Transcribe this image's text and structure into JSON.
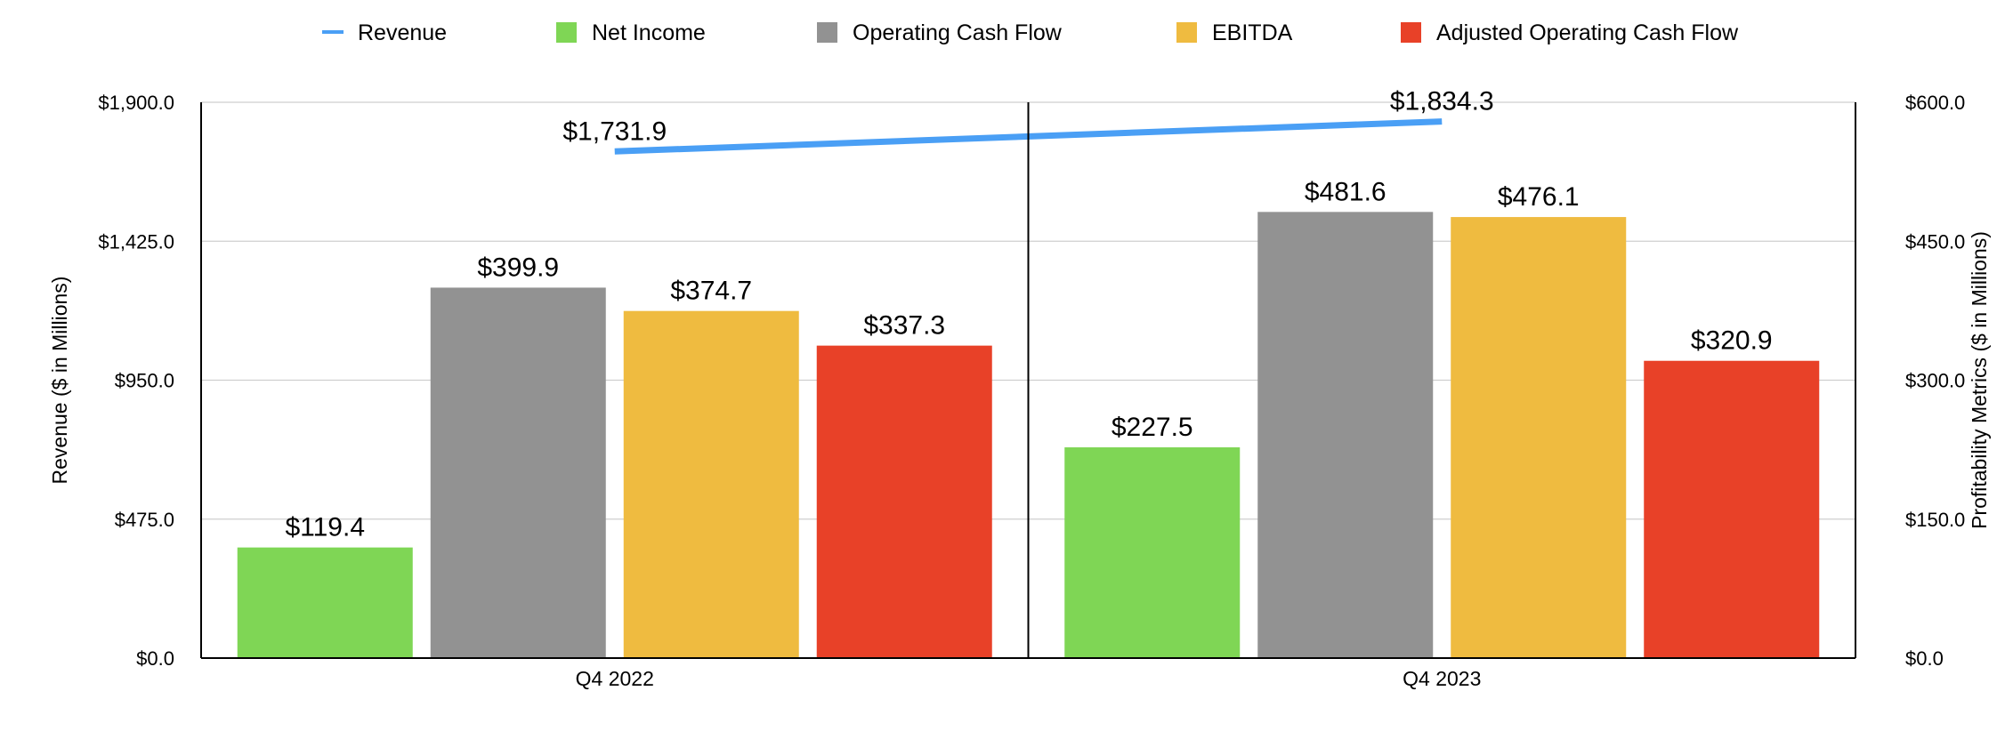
{
  "chart_data": {
    "type": "bar",
    "categories": [
      "Q4 2022",
      "Q4 2023"
    ],
    "series": [
      {
        "name": "Revenue",
        "kind": "line",
        "axis": "left",
        "color": "#4a9ff5",
        "values": [
          1731.9,
          1834.3
        ],
        "labels": [
          "$1,731.9",
          "$1,834.3"
        ]
      },
      {
        "name": "Net Income",
        "kind": "bar",
        "axis": "right",
        "color": "#7fd655",
        "values": [
          119.4,
          227.5
        ],
        "labels": [
          "$119.4",
          "$227.5"
        ]
      },
      {
        "name": "Operating Cash Flow",
        "kind": "bar",
        "axis": "right",
        "color": "#929292",
        "values": [
          399.9,
          481.6
        ],
        "labels": [
          "$399.9",
          "$481.6"
        ]
      },
      {
        "name": "EBITDA",
        "kind": "bar",
        "axis": "right",
        "color": "#efbb40",
        "values": [
          374.7,
          476.1
        ],
        "labels": [
          "$374.7",
          "$476.1"
        ]
      },
      {
        "name": "Adjusted Operating Cash Flow",
        "kind": "bar",
        "axis": "right",
        "color": "#e84128",
        "values": [
          337.3,
          320.9
        ],
        "labels": [
          "$337.3",
          "$320.9"
        ]
      }
    ],
    "y_left": {
      "label": "Revenue ($ in Millions)",
      "range": [
        0,
        1900
      ],
      "ticks": [
        0,
        475,
        950,
        1425,
        1900
      ],
      "tick_labels": [
        "$0.0",
        "$475.0",
        "$950.0",
        "$1,425.0",
        "$1,900.0"
      ]
    },
    "y_right": {
      "label": "Profitability Metrics ($ in Millions)",
      "range": [
        0,
        600
      ],
      "ticks": [
        0,
        150,
        300,
        450,
        600
      ],
      "tick_labels": [
        "$0.0",
        "$150.0",
        "$300.0",
        "$450.0",
        "$600.0"
      ]
    },
    "grid": true,
    "legend_position": "top"
  }
}
